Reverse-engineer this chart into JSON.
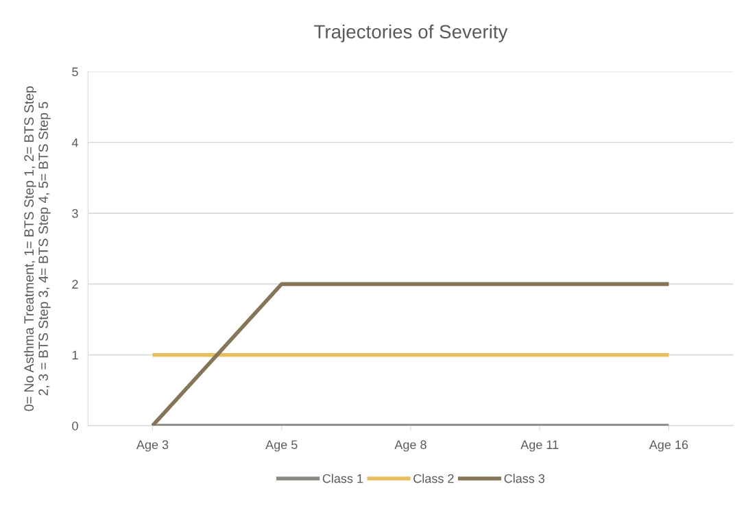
{
  "chart_data": {
    "type": "line",
    "title": "Trajectories of Severity",
    "ylabel": "0= No Asthma Treatment, 1= BTS Step 1, 2= BTS Step\n2, 3 = BTS Step 3, 4= BTS Step 4, 5= BTS Step 5",
    "categories": [
      "Age 3",
      "Age 5",
      "Age 8",
      "Age 11",
      "Age 16"
    ],
    "series": [
      {
        "name": "Class 1",
        "color": "#8a8a84",
        "values": [
          0,
          0,
          0,
          0,
          0
        ]
      },
      {
        "name": "Class 2",
        "color": "#e8bd5e",
        "values": [
          1,
          1,
          1,
          1,
          1
        ]
      },
      {
        "name": "Class 3",
        "color": "#857559",
        "values": [
          0,
          2,
          2,
          2,
          2
        ]
      }
    ],
    "ylim": [
      0,
      5
    ],
    "yticks": [
      0,
      1,
      2,
      3,
      4,
      5
    ],
    "grid": "y",
    "legend": "bottom",
    "marker": "none",
    "line_style": "solid"
  }
}
